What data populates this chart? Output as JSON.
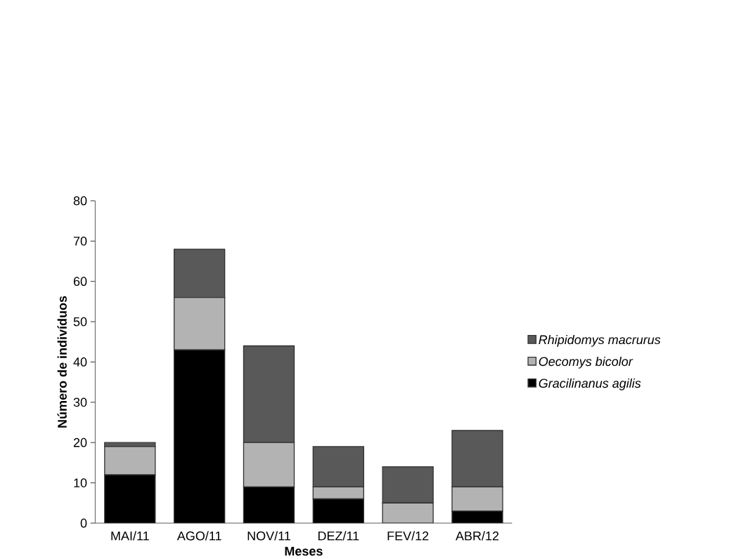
{
  "chart_data": {
    "type": "bar",
    "stacked": true,
    "xlabel": "Meses",
    "ylabel": "Número de indivíduos",
    "categories": [
      "MAI/11",
      "AGO/11",
      "NOV/11",
      "DEZ/11",
      "FEV/12",
      "ABR/12"
    ],
    "series": [
      {
        "name": "*Gracilinanus agilis*",
        "color": "#000000",
        "values": [
          12,
          43,
          9,
          6,
          0,
          3
        ]
      },
      {
        "name": "*Oecomys bicolor*",
        "color": "#b3b3b3",
        "values": [
          7,
          13,
          11,
          3,
          5,
          6
        ]
      },
      {
        "name": "*Rhipidomys macrurus*",
        "color": "#595959",
        "values": [
          1,
          12,
          24,
          10,
          9,
          14
        ]
      }
    ],
    "ylim": [
      0,
      80
    ],
    "yticks": [
      0,
      10,
      20,
      30,
      40,
      50,
      60,
      70,
      80
    ],
    "grid": false,
    "legend": "right"
  }
}
